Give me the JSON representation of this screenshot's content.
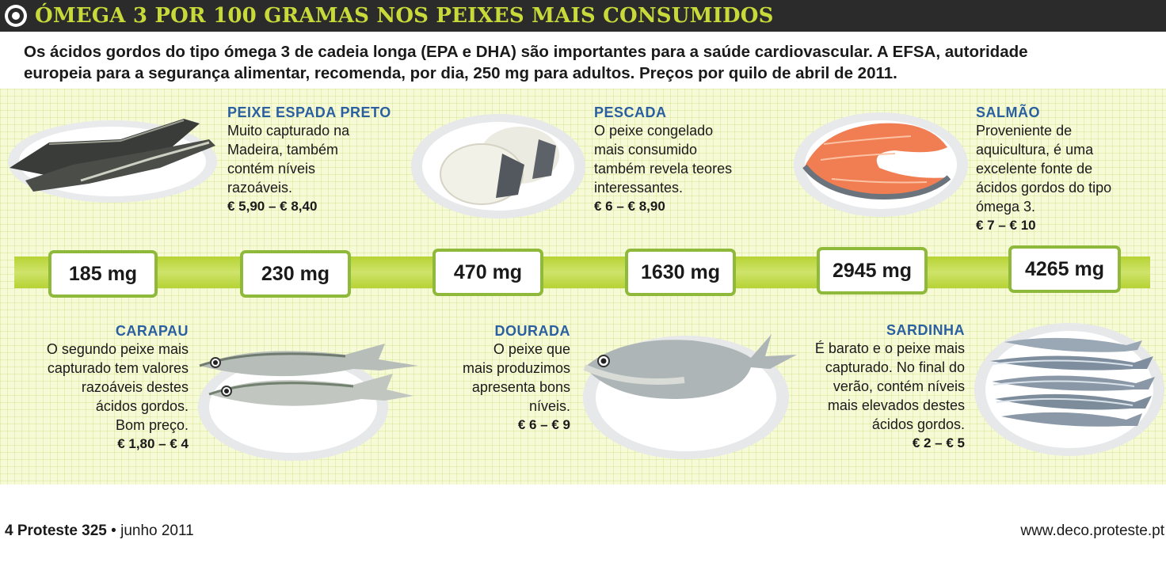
{
  "header": {
    "title": "ÓMEGA 3 POR 100 GRAMAS NOS PEIXES MAIS CONSUMIDOS",
    "icon": "target-icon"
  },
  "intro": {
    "line1": "Os ácidos gordos do tipo ómega 3 de cadeia longa (EPA e DHA) são importantes para a saúde cardiovascular. A EFSA, autoridade",
    "line2": "europeia para a segurança alimentar, recomenda, por dia, 250 mg para adultos. Preços por quilo de abril de 2011."
  },
  "scale": [
    {
      "value": "185 mg",
      "amount_mg": 185
    },
    {
      "value": "230 mg",
      "amount_mg": 230
    },
    {
      "value": "470 mg",
      "amount_mg": 470
    },
    {
      "value": "1630 mg",
      "amount_mg": 1630
    },
    {
      "value": "2945 mg",
      "amount_mg": 2945
    },
    {
      "value": "4265 mg",
      "amount_mg": 4265
    }
  ],
  "fish": {
    "carapau": {
      "name": "CARAPAU",
      "lines": [
        "O segundo peixe mais",
        "capturado tem valores",
        "razoáveis destes",
        "ácidos gordos.",
        "Bom preço."
      ],
      "price": "€ 1,80 – € 4"
    },
    "peixe_espada": {
      "name": "PEIXE ESPADA PRETO",
      "lines": [
        "Muito capturado na",
        "Madeira, também",
        "contém níveis",
        "razoáveis."
      ],
      "price": "€ 5,90 – € 8,40"
    },
    "dourada": {
      "name": "DOURADA",
      "lines": [
        "O peixe que",
        "mais produzimos",
        "apresenta bons",
        "níveis."
      ],
      "price": "€ 6 – € 9"
    },
    "pescada": {
      "name": "PESCADA",
      "lines": [
        "O peixe congelado",
        "mais consumido",
        "também revela teores",
        "interessantes."
      ],
      "price": "€ 6 – € 8,90"
    },
    "sardinha": {
      "name": "SARDINHA",
      "lines": [
        "É barato e o peixe mais",
        "capturado. No final do",
        "verão, contém níveis",
        "mais elevados destes",
        "ácidos gordos."
      ],
      "price": "€ 2 – € 5"
    },
    "salmao": {
      "name": "SALMÃO",
      "lines": [
        "Proveniente de",
        "aquicultura, é uma",
        "excelente fonte de",
        "ácidos gordos do tipo",
        "ómega 3."
      ],
      "price": "€ 7 – € 10"
    }
  },
  "footer": {
    "page": "4",
    "magazine": "Proteste 325",
    "separator": "•",
    "date": "junho 2011",
    "url": "www.deco.proteste.pt"
  }
}
